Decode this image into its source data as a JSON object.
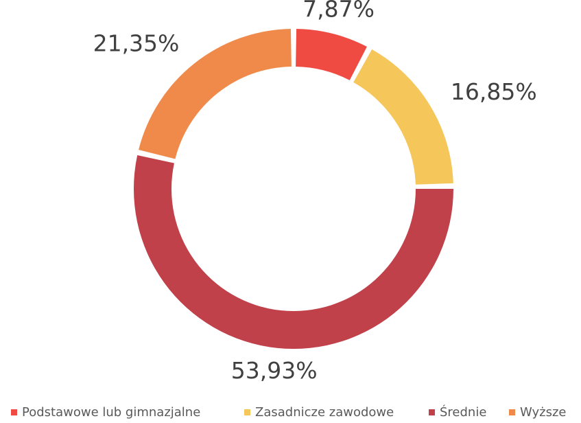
{
  "chart_data": {
    "type": "donut",
    "categories": [
      "Podstawowe lub gimnazjalne",
      "Zasadnicze zawodowe",
      "Średnie",
      "Wyższe"
    ],
    "values": [
      7.87,
      16.85,
      53.93,
      21.35
    ],
    "value_labels": [
      "7,87%",
      "16,85%",
      "53,93%",
      "21,35%"
    ],
    "colors": [
      "#ef4b43",
      "#f5c65a",
      "#c0414a",
      "#f08a4b"
    ],
    "legend": "bottom"
  }
}
